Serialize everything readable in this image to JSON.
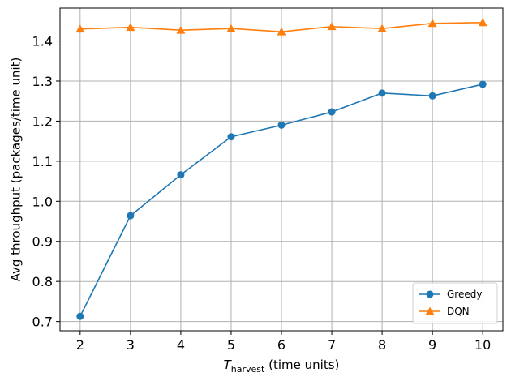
{
  "chart_data": {
    "type": "line",
    "x": [
      2,
      3,
      4,
      5,
      6,
      7,
      8,
      9,
      10
    ],
    "series": [
      {
        "name": "Greedy",
        "values": [
          0.713,
          0.964,
          1.066,
          1.161,
          1.19,
          1.223,
          1.27,
          1.263,
          1.292
        ],
        "color": "#1f77b4",
        "marker": "circle"
      },
      {
        "name": "DQN",
        "values": [
          1.43,
          1.434,
          1.427,
          1.431,
          1.423,
          1.436,
          1.431,
          1.444,
          1.446
        ],
        "color": "#ff7f0e",
        "marker": "triangle"
      }
    ],
    "xlabel_main": "T",
    "xlabel_sub": "harvest",
    "xlabel_rest": " (time units)",
    "ylabel": "Avg throughput (packages/time unit)",
    "xlim": [
      1.6,
      10.4
    ],
    "ylim": [
      0.677,
      1.482
    ],
    "xticks": [
      2,
      3,
      4,
      5,
      6,
      7,
      8,
      9,
      10
    ],
    "yticks": [
      0.7,
      0.8,
      0.9,
      1.0,
      1.1,
      1.2,
      1.3,
      1.4
    ],
    "ytick_labels": [
      "0.7",
      "0.8",
      "0.9",
      "1.0",
      "1.1",
      "1.2",
      "1.3",
      "1.4"
    ],
    "grid": true,
    "legend_position": "lower-right"
  }
}
